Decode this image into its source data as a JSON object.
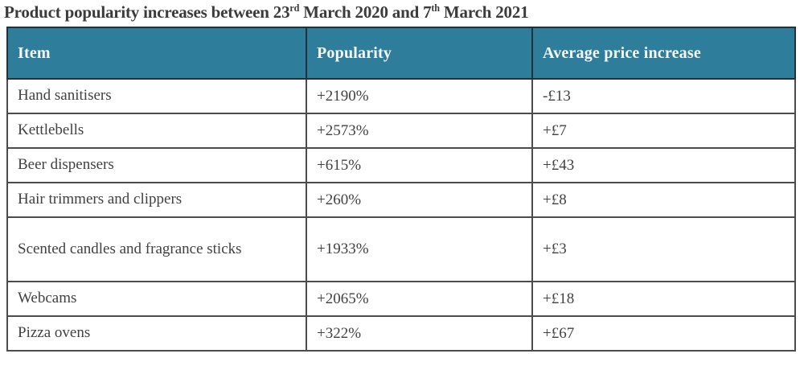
{
  "title": {
    "pre": "Product popularity increases between 23",
    "sup1": "rd",
    "mid": " March 2020 and 7",
    "sup2": "th",
    "post": " March 2021"
  },
  "colors": {
    "header_background": "#2e7d9b",
    "header_text": "#f7fbfd",
    "body_text": "#414141",
    "border": "#4c4c4c",
    "title_text": "#3b3b3b"
  },
  "table": {
    "headers": [
      "Item",
      "Popularity",
      "Average price increase"
    ],
    "rows": [
      {
        "item": "Hand sanitisers",
        "popularity": "+2190%",
        "price": "-£13"
      },
      {
        "item": "Kettlebells",
        "popularity": "+2573%",
        "price": "+£7"
      },
      {
        "item": "Beer dispensers",
        "popularity": "+615%",
        "price": "+£43"
      },
      {
        "item": "Hair trimmers and clippers",
        "popularity": "+260%",
        "price": "+£8"
      },
      {
        "item": "Scented candles and fragrance sticks",
        "popularity": "+1933%",
        "price": "+£3"
      },
      {
        "item": "Webcams",
        "popularity": "+2065%",
        "price": "+£18"
      },
      {
        "item": "Pizza ovens",
        "popularity": "+322%",
        "price": "+£67"
      }
    ]
  },
  "chart_data": {
    "type": "table",
    "title": "Product popularity increases between 23rd March 2020 and 7th March 2021",
    "columns": [
      "Item",
      "Popularity",
      "Average price increase"
    ],
    "categories": [
      "Hand sanitisers",
      "Kettlebells",
      "Beer dispensers",
      "Hair trimmers and clippers",
      "Scented candles and fragrance sticks",
      "Webcams",
      "Pizza ovens"
    ],
    "series": [
      {
        "name": "Popularity increase (%)",
        "values": [
          2190,
          2573,
          615,
          260,
          1933,
          2065,
          322
        ]
      },
      {
        "name": "Average price increase (£)",
        "values": [
          -13,
          7,
          43,
          8,
          3,
          18,
          67
        ]
      }
    ]
  }
}
